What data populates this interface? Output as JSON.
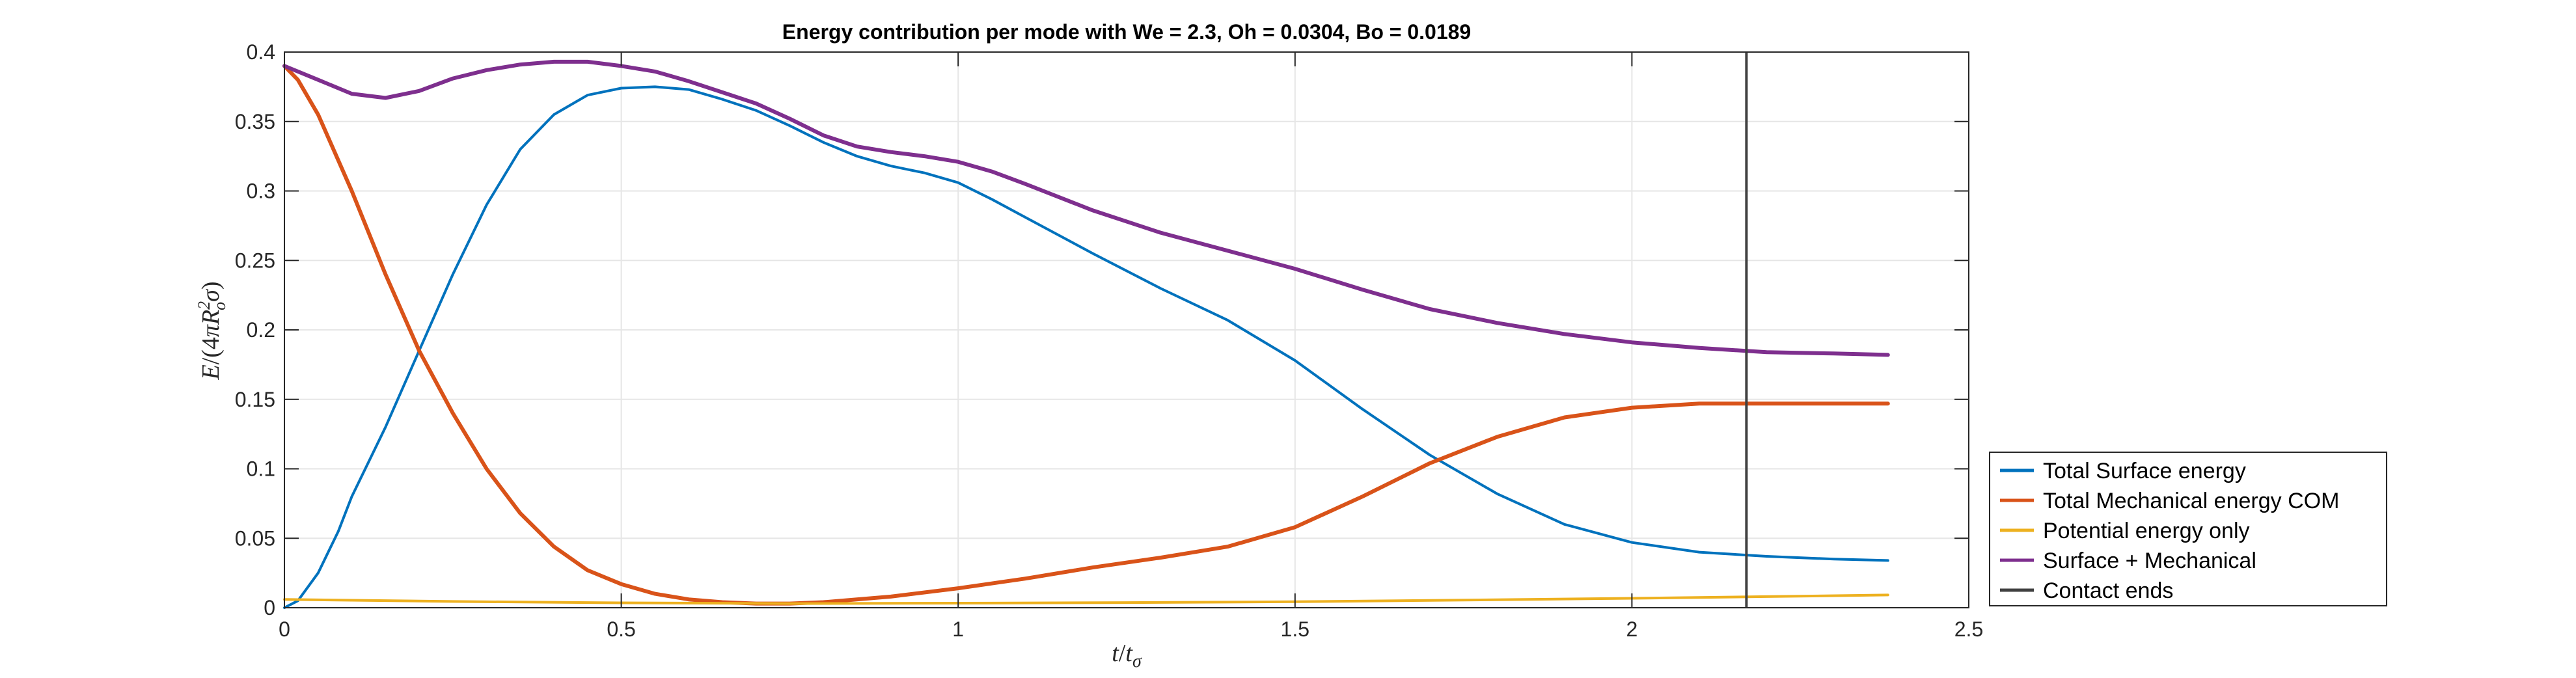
{
  "chart_data": {
    "type": "line",
    "title": "Energy contribution per mode with We = 2.3, Oh = 0.0304, Bo = 0.0189",
    "xlabel": "t/t_σ",
    "ylabel": "E/(4πR_o^2σ)",
    "xlim": [
      0,
      2.5
    ],
    "ylim": [
      0,
      0.4
    ],
    "xticks": [
      0,
      0.5,
      1,
      1.5,
      2,
      2.5
    ],
    "yticks": [
      0,
      0.05,
      0.1,
      0.15,
      0.2,
      0.25,
      0.3,
      0.35,
      0.4
    ],
    "xtick_labels": [
      "0",
      "0.5",
      "1",
      "1.5",
      "2",
      "2.5"
    ],
    "ytick_labels": [
      "0",
      "0.05",
      "0.1",
      "0.15",
      "0.2",
      "0.25",
      "0.3",
      "0.35",
      "0.4"
    ],
    "grid": true,
    "legend_position": "outside-bottom-right",
    "series": [
      {
        "name": "Total Surface energy",
        "color": "#0072BD",
        "x": [
          0,
          0.02,
          0.05,
          0.08,
          0.1,
          0.15,
          0.2,
          0.25,
          0.3,
          0.35,
          0.4,
          0.45,
          0.5,
          0.55,
          0.6,
          0.65,
          0.7,
          0.75,
          0.8,
          0.85,
          0.9,
          0.95,
          1.0,
          1.05,
          1.1,
          1.2,
          1.3,
          1.4,
          1.5,
          1.6,
          1.7,
          1.8,
          1.9,
          2.0,
          2.1,
          2.2,
          2.3,
          2.38
        ],
        "y": [
          0,
          0.005,
          0.025,
          0.055,
          0.08,
          0.13,
          0.185,
          0.24,
          0.29,
          0.33,
          0.355,
          0.369,
          0.374,
          0.375,
          0.373,
          0.366,
          0.358,
          0.347,
          0.335,
          0.325,
          0.318,
          0.313,
          0.306,
          0.294,
          0.281,
          0.255,
          0.23,
          0.207,
          0.178,
          0.143,
          0.11,
          0.082,
          0.06,
          0.047,
          0.04,
          0.037,
          0.035,
          0.034
        ]
      },
      {
        "name": "Total Mechanical energy COM",
        "color": "#D95319",
        "x": [
          0,
          0.02,
          0.05,
          0.1,
          0.15,
          0.2,
          0.25,
          0.3,
          0.35,
          0.4,
          0.45,
          0.5,
          0.55,
          0.6,
          0.65,
          0.7,
          0.75,
          0.8,
          0.9,
          1.0,
          1.1,
          1.2,
          1.3,
          1.4,
          1.5,
          1.6,
          1.7,
          1.8,
          1.9,
          2.0,
          2.1,
          2.2,
          2.3,
          2.38
        ],
        "y": [
          0.39,
          0.38,
          0.355,
          0.3,
          0.24,
          0.185,
          0.14,
          0.1,
          0.068,
          0.044,
          0.027,
          0.017,
          0.01,
          0.006,
          0.004,
          0.003,
          0.003,
          0.004,
          0.008,
          0.014,
          0.021,
          0.029,
          0.036,
          0.044,
          0.058,
          0.08,
          0.104,
          0.123,
          0.137,
          0.144,
          0.147,
          0.147,
          0.147,
          0.147
        ]
      },
      {
        "name": "Potential energy only",
        "color": "#EDB120",
        "x": [
          0,
          0.25,
          0.5,
          0.75,
          1.0,
          1.25,
          1.5,
          1.75,
          2.0,
          2.2,
          2.38
        ],
        "y": [
          0.006,
          0.0045,
          0.0035,
          0.003,
          0.0033,
          0.0037,
          0.0043,
          0.0055,
          0.0068,
          0.008,
          0.0092
        ]
      },
      {
        "name": "Surface + Mechanical",
        "color": "#7E2F8E",
        "x": [
          0,
          0.05,
          0.1,
          0.15,
          0.2,
          0.25,
          0.3,
          0.35,
          0.4,
          0.45,
          0.5,
          0.55,
          0.6,
          0.65,
          0.7,
          0.75,
          0.8,
          0.85,
          0.9,
          0.95,
          1.0,
          1.05,
          1.1,
          1.2,
          1.3,
          1.4,
          1.5,
          1.6,
          1.7,
          1.8,
          1.9,
          2.0,
          2.1,
          2.2,
          2.3,
          2.38
        ],
        "y": [
          0.39,
          0.38,
          0.37,
          0.367,
          0.372,
          0.381,
          0.387,
          0.391,
          0.393,
          0.393,
          0.39,
          0.386,
          0.379,
          0.371,
          0.363,
          0.352,
          0.34,
          0.332,
          0.328,
          0.325,
          0.321,
          0.314,
          0.305,
          0.286,
          0.27,
          0.257,
          0.244,
          0.229,
          0.215,
          0.205,
          0.197,
          0.191,
          0.187,
          0.184,
          0.183,
          0.182
        ]
      },
      {
        "name": "Contact ends",
        "color": "#404040",
        "type": "vertical-line",
        "x": 2.17
      }
    ]
  }
}
